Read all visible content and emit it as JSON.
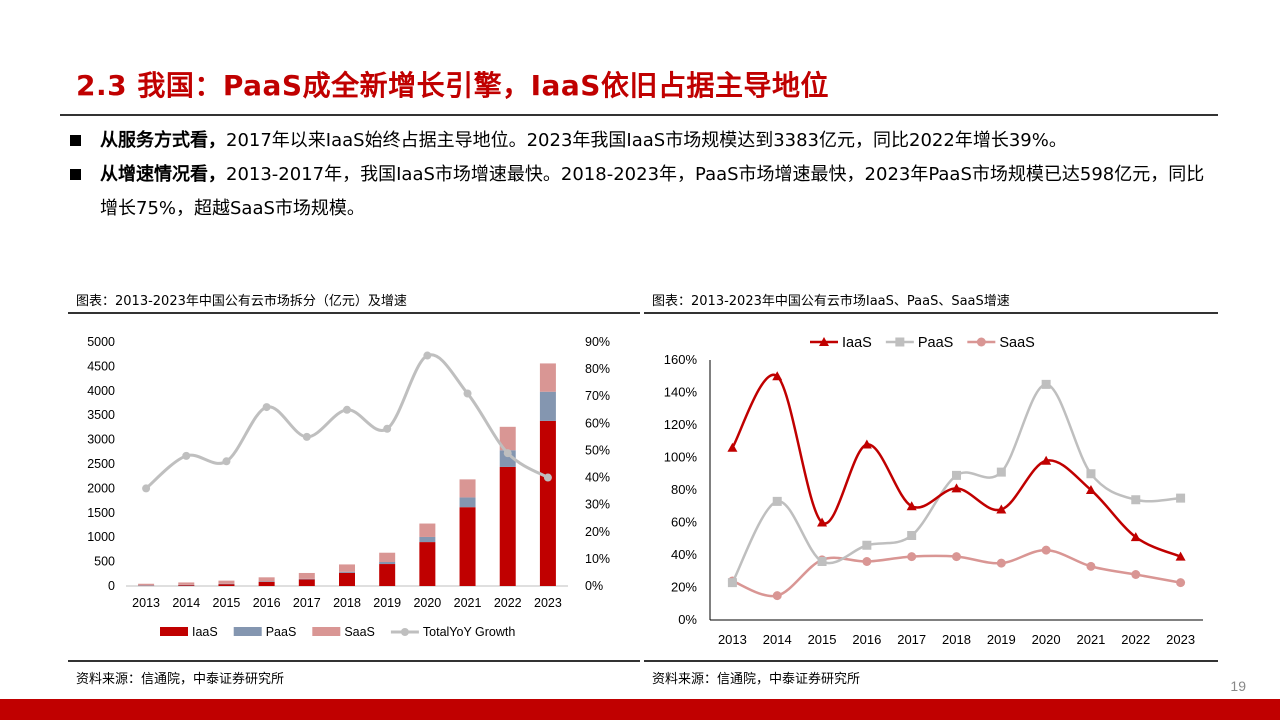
{
  "title": "2.3 我国：PaaS成全新增长引擎，IaaS依旧占据主导地位",
  "bullets": [
    {
      "lead": "从服务方式看，",
      "text": "2017年以来IaaS始终占据主导地位。2023年我国IaaS市场规模达到3383亿元，同比2022年增长39%。"
    },
    {
      "lead": "从增速情况看，",
      "text": "2013-2017年，我国IaaS市场增速最快。2018-2023年，PaaS市场增速最快，2023年PaaS市场规模已达598亿元，同比增长75%，超越SaaS市场规模。"
    }
  ],
  "left_caption": "图表：2013-2023年中国公有云市场拆分（亿元）及增速",
  "right_caption": "图表：2013-2023年中国公有云市场IaaS、PaaS、SaaS增速",
  "left_source": "资料来源：信通院，中泰证券研究所",
  "right_source": "资料来源：信通院，中泰证券研究所",
  "page_number": "19",
  "colors": {
    "iaas": "#c00000",
    "paas": "#8496b0",
    "saas": "#d99694",
    "total": "#bfbfbf",
    "title": "#c00000"
  },
  "chart_data": [
    {
      "type": "bar",
      "stacked": true,
      "categories": [
        "2013",
        "2014",
        "2015",
        "2016",
        "2017",
        "2018",
        "2019",
        "2020",
        "2021",
        "2022",
        "2023"
      ],
      "series": [
        {
          "name": "IaaS",
          "values": [
            10,
            20,
            40,
            85,
            135,
            270,
            450,
            900,
            1615,
            2440,
            3383
          ]
        },
        {
          "name": "PaaS",
          "values": [
            1,
            3,
            5,
            8,
            12,
            22,
            42,
            105,
            200,
            342,
            598
          ]
        },
        {
          "name": "SaaS",
          "values": [
            35,
            50,
            65,
            85,
            120,
            150,
            190,
            275,
            370,
            480,
            580
          ]
        },
        {
          "name": "TotalYoY Growth",
          "axis": "right",
          "values": [
            36,
            48,
            46,
            66,
            55,
            65,
            58,
            85,
            71,
            49,
            40
          ]
        }
      ],
      "ylim": [
        0,
        5000
      ],
      "yticks": [
        0,
        500,
        1000,
        1500,
        2000,
        2500,
        3000,
        3500,
        4000,
        4500,
        5000
      ],
      "y2lim": [
        0,
        90
      ],
      "y2ticks": [
        "0%",
        "10%",
        "20%",
        "30%",
        "40%",
        "50%",
        "60%",
        "70%",
        "80%",
        "90%"
      ],
      "legend": "bottom"
    },
    {
      "type": "line",
      "categories": [
        "2013",
        "2014",
        "2015",
        "2016",
        "2017",
        "2018",
        "2019",
        "2020",
        "2021",
        "2022",
        "2023"
      ],
      "series": [
        {
          "name": "IaaS",
          "values": [
            106,
            150,
            60,
            108,
            70,
            81,
            68,
            98,
            80,
            51,
            39
          ]
        },
        {
          "name": "PaaS",
          "values": [
            23,
            73,
            36,
            46,
            52,
            89,
            91,
            145,
            90,
            74,
            75
          ]
        },
        {
          "name": "SaaS",
          "values": [
            24,
            15,
            37,
            36,
            39,
            39,
            35,
            43,
            33,
            28,
            23
          ]
        }
      ],
      "ylim": [
        0,
        160
      ],
      "yticks": [
        "0%",
        "20%",
        "40%",
        "60%",
        "80%",
        "100%",
        "120%",
        "140%",
        "160%"
      ],
      "legend": "top"
    }
  ]
}
